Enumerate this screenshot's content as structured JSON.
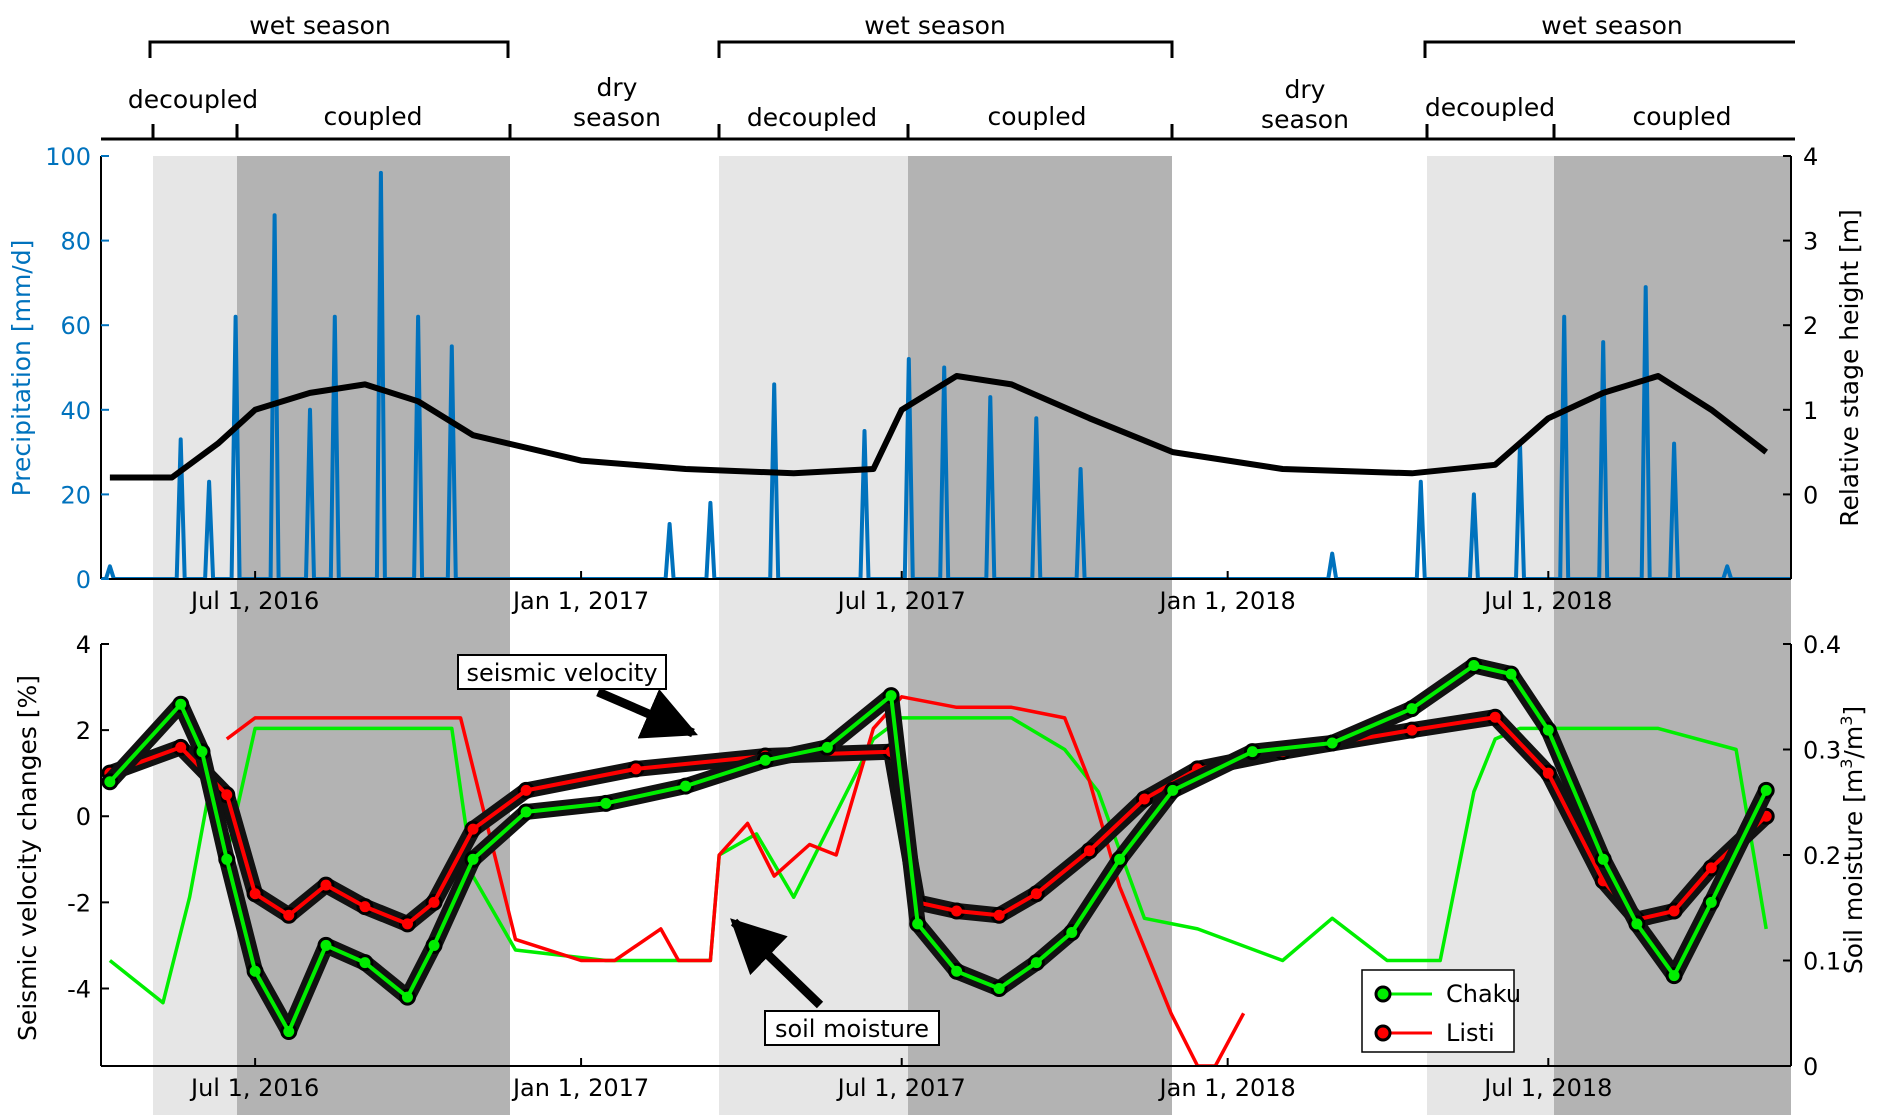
{
  "season_bar": {
    "wet_label": "wet season",
    "dry_label_line1": "dry",
    "dry_label_line2": "season",
    "decoupled_label": "decoupled",
    "coupled_label": "coupled"
  },
  "x_ticks": [
    "Jul 1, 2016",
    "Jan 1, 2017",
    "Jul 1, 2017",
    "Jan 1, 2018",
    "Jul 1, 2018"
  ],
  "colors": {
    "precip": "#0072BD",
    "stage": "#000000",
    "chaku_line": "#00ee00",
    "listi_line": "#ff0000",
    "decoupled_shade": "#e6e6e6",
    "coupled_shade": "#b3b3b3"
  },
  "chart_data": [
    {
      "type": "line",
      "panel": "top",
      "ylabel": "Precipitation [mm/d]",
      "y2label": "Relative stage height [m]",
      "ylim": [
        0,
        100
      ],
      "y2lim": [
        -1,
        4
      ],
      "yticks": [
        "0",
        "20",
        "40",
        "60",
        "80",
        "100"
      ],
      "y2ticks": [
        "0",
        "1",
        "2",
        "3",
        "4"
      ],
      "series": [
        {
          "axis": "left",
          "x": [
            "2016-04-10",
            "2016-05-20",
            "2016-06-05",
            "2016-06-20",
            "2016-07-12",
            "2016-08-01",
            "2016-08-15",
            "2016-09-10",
            "2016-10-01",
            "2016-10-20",
            "2016-11-20",
            "2017-01-10",
            "2017-02-20",
            "2017-03-15",
            "2017-04-20",
            "2017-06-10",
            "2017-07-05",
            "2017-07-25",
            "2017-08-20",
            "2017-09-15",
            "2017-10-10",
            "2017-11-15",
            "2018-01-15",
            "2018-03-01",
            "2018-04-20",
            "2018-05-20",
            "2018-06-15",
            "2018-07-10",
            "2018-08-01",
            "2018-08-25",
            "2018-09-10",
            "2018-10-10"
          ],
          "values": [
            3,
            33,
            23,
            62,
            86,
            40,
            62,
            96,
            62,
            55,
            0,
            0,
            13,
            18,
            46,
            35,
            52,
            50,
            43,
            38,
            26,
            0,
            0,
            6,
            23,
            20,
            32,
            62,
            56,
            69,
            32,
            3
          ]
        },
        {
          "axis": "right",
          "x": [
            "2016-04-10",
            "2016-05-15",
            "2016-06-10",
            "2016-07-01",
            "2016-08-01",
            "2016-09-01",
            "2016-10-01",
            "2016-11-01",
            "2017-01-01",
            "2017-03-01",
            "2017-05-01",
            "2017-06-15",
            "2017-07-01",
            "2017-08-01",
            "2017-09-01",
            "2017-10-15",
            "2017-12-01",
            "2018-02-01",
            "2018-04-15",
            "2018-06-01",
            "2018-07-01",
            "2018-08-01",
            "2018-09-01",
            "2018-10-01",
            "2018-11-01"
          ],
          "values": [
            0.2,
            0.2,
            0.6,
            1.0,
            1.2,
            1.3,
            1.1,
            0.7,
            0.4,
            0.3,
            0.25,
            0.3,
            1.0,
            1.4,
            1.3,
            0.9,
            0.5,
            0.3,
            0.25,
            0.35,
            0.9,
            1.2,
            1.4,
            1.0,
            0.5
          ]
        }
      ]
    },
    {
      "type": "line",
      "panel": "bottom",
      "ylabel": "Seismic velocity changes [%]",
      "y2label_main": "Soil moisture [m",
      "y2label_sup1": "3",
      "y2label_mid": "/m",
      "y2label_sup2": "3",
      "y2label_end": "]",
      "ylim": [
        -5.8,
        4
      ],
      "y2lim": [
        0,
        0.4
      ],
      "yticks": [
        "4",
        "2",
        "0",
        "-2",
        "-4"
      ],
      "y2ticks": [
        "0",
        "0.1",
        "0.2",
        "0.3",
        "0.4"
      ],
      "legend": [
        "Chaku",
        "Listi"
      ],
      "annotations": [
        "seismic velocity",
        "soil moisture"
      ],
      "series": [
        {
          "name": "Chaku",
          "x": [
            "2016-04-10",
            "2016-05-20",
            "2016-06-01",
            "2016-06-15",
            "2016-07-01",
            "2016-07-20",
            "2016-08-10",
            "2016-09-01",
            "2016-09-25",
            "2016-10-10",
            "2016-11-01",
            "2016-12-01",
            "2017-01-15",
            "2017-03-01",
            "2017-04-15",
            "2017-05-20",
            "2017-06-25",
            "2017-07-10",
            "2017-08-01",
            "2017-08-25",
            "2017-09-15",
            "2017-10-05",
            "2017-11-01",
            "2017-12-01",
            "2018-01-15",
            "2018-03-01",
            "2018-04-15",
            "2018-05-20",
            "2018-06-10",
            "2018-07-01",
            "2018-08-01",
            "2018-08-20",
            "2018-09-10",
            "2018-10-01",
            "2018-11-01"
          ],
          "values": [
            0.8,
            2.6,
            1.5,
            -1.0,
            -3.6,
            -5.0,
            -3.0,
            -3.4,
            -4.2,
            -3.0,
            -1.0,
            0.1,
            0.3,
            0.7,
            1.3,
            1.6,
            2.8,
            -2.5,
            -3.6,
            -4.0,
            -3.4,
            -2.7,
            -1.0,
            0.6,
            1.5,
            1.7,
            2.5,
            3.5,
            3.3,
            2.0,
            -1.0,
            -2.5,
            -3.7,
            -2.0,
            0.6
          ]
        },
        {
          "name": "Listi",
          "x": [
            "2016-04-10",
            "2016-05-20",
            "2016-06-15",
            "2016-07-01",
            "2016-07-20",
            "2016-08-10",
            "2016-09-01",
            "2016-09-25",
            "2016-10-10",
            "2016-11-01",
            "2016-12-01",
            "2017-02-01",
            "2017-04-15",
            "2017-06-25",
            "2017-07-10",
            "2017-08-01",
            "2017-08-25",
            "2017-09-15",
            "2017-10-15",
            "2017-11-15",
            "2017-12-15",
            "2018-02-01",
            "2018-04-15",
            "2018-06-01",
            "2018-07-01",
            "2018-08-01",
            "2018-08-20",
            "2018-09-10",
            "2018-10-01",
            "2018-11-01"
          ],
          "values": [
            1.0,
            1.6,
            0.5,
            -1.8,
            -2.3,
            -1.6,
            -2.1,
            -2.5,
            -2.0,
            -0.3,
            0.6,
            1.1,
            1.4,
            1.5,
            -2.0,
            -2.2,
            -2.3,
            -1.8,
            -0.8,
            0.4,
            1.1,
            1.5,
            2.0,
            2.3,
            1.0,
            -1.5,
            -2.4,
            -2.2,
            -1.2,
            0.0
          ]
        },
        {
          "name": "Chaku",
          "axis": "right",
          "x": [
            "2016-04-10",
            "2016-05-10",
            "2016-05-25",
            "2016-06-05",
            "2016-06-15",
            "2016-07-01",
            "2016-08-01",
            "2016-09-01",
            "2016-10-01",
            "2016-10-20",
            "2016-11-01",
            "2016-11-25",
            "2017-01-15",
            "2017-03-15",
            "2017-03-20",
            "2017-04-10",
            "2017-05-01",
            "2017-06-15",
            "2017-07-01",
            "2017-08-01",
            "2017-09-01",
            "2017-10-01",
            "2017-10-20",
            "2017-11-15",
            "2017-12-15",
            "2018-02-01",
            "2018-03-01",
            "2018-04-01",
            "2018-05-01",
            "2018-05-20",
            "2018-06-01",
            "2018-06-15",
            "2018-07-01",
            "2018-08-01",
            "2018-09-01",
            "2018-10-15",
            "2018-11-01"
          ],
          "values": [
            0.1,
            0.06,
            0.16,
            0.26,
            0.2,
            0.32,
            0.32,
            0.32,
            0.32,
            0.32,
            0.18,
            0.11,
            0.1,
            0.1,
            0.2,
            0.22,
            0.16,
            0.31,
            0.33,
            0.33,
            0.33,
            0.3,
            0.26,
            0.14,
            0.13,
            0.1,
            0.14,
            0.1,
            0.1,
            0.26,
            0.31,
            0.32,
            0.32,
            0.32,
            0.32,
            0.3,
            0.13
          ]
        },
        {
          "name": "Listi",
          "axis": "right",
          "x": [
            "2016-06-15",
            "2016-07-01",
            "2016-08-01",
            "2016-09-01",
            "2016-10-01",
            "2016-10-25",
            "2016-11-25",
            "2017-01-01",
            "2017-01-20",
            "2017-02-15",
            "2017-02-25",
            "2017-03-15",
            "2017-03-20",
            "2017-04-05",
            "2017-04-20",
            "2017-05-10",
            "2017-05-25",
            "2017-06-15",
            "2017-07-01",
            "2017-08-01",
            "2017-09-01",
            "2017-10-01",
            "2017-10-15",
            "2017-11-01",
            "2017-11-30",
            "2017-12-15",
            "2017-12-25",
            "2018-01-10"
          ],
          "values": [
            0.31,
            0.33,
            0.33,
            0.33,
            0.33,
            0.33,
            0.12,
            0.1,
            0.1,
            0.13,
            0.1,
            0.1,
            0.2,
            0.23,
            0.18,
            0.21,
            0.2,
            0.32,
            0.35,
            0.34,
            0.34,
            0.33,
            0.27,
            0.17,
            0.05,
            0.0,
            0.0,
            0.05
          ]
        }
      ]
    }
  ]
}
